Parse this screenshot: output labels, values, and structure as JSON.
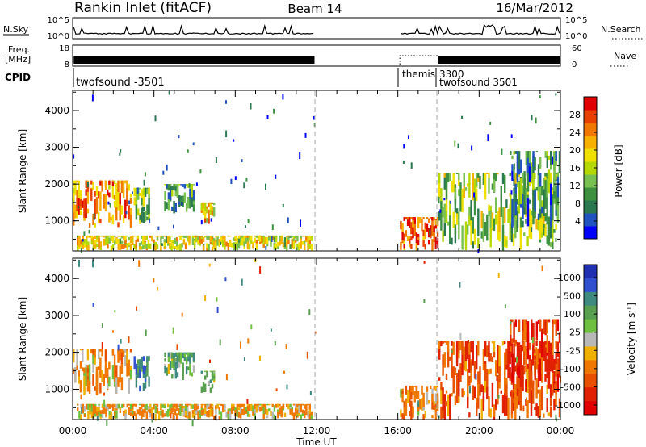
{
  "header": {
    "title": "Rankin Inlet (fitACF)",
    "beam": "Beam 14",
    "date": "16/Mar/2012"
  },
  "top_panels": {
    "nsky": {
      "left_label": "N.Sky",
      "right_label": "N.Search",
      "ticks_left": [
        "10^5",
        "10^0"
      ],
      "ticks_right": [
        "10^5",
        "10^0"
      ]
    },
    "freq": {
      "left_label_1": "Freq.",
      "left_label_2": "[MHz]",
      "right_label": "Nave",
      "ticks_left": [
        "18",
        "8"
      ],
      "ticks_right": [
        "60",
        "0"
      ]
    },
    "cpid": {
      "label": "CPID",
      "segments": [
        {
          "name": "twofsound -3501"
        },
        {
          "name": "themis"
        },
        {
          "name": "3300"
        },
        {
          "name": "twofsound 3501"
        }
      ]
    }
  },
  "chart_data": [
    {
      "type": "heatmap",
      "panel": "power",
      "ylabel": "Slant Range [km]",
      "xlabel": "",
      "xlim": [
        0,
        24
      ],
      "ylim": [
        180,
        4550
      ],
      "yticks": [
        "1000",
        "2000",
        "3000",
        "4000"
      ],
      "data_gap_ut": [
        11.9,
        16.1
      ],
      "colorbar": {
        "label": "Power [dB]",
        "range": [
          0,
          32
        ],
        "ticks": [
          "4",
          "8",
          "12",
          "16",
          "20",
          "24",
          "28"
        ],
        "colors": [
          "#0000ff",
          "#2052c0",
          "#2a7850",
          "#3c9040",
          "#78c050",
          "#b4d800",
          "#f0e000",
          "#f8b000",
          "#f07800",
          "#e84000",
          "#e00000"
        ]
      },
      "echo_regions": [
        {
          "t": [
            0.0,
            2.9
          ],
          "r": [
            800,
            2100
          ],
          "value": 24
        },
        {
          "t": [
            3.0,
            3.8
          ],
          "r": [
            900,
            1900
          ],
          "value": 14
        },
        {
          "t": [
            4.5,
            6.0
          ],
          "r": [
            1200,
            2000
          ],
          "value": 10
        },
        {
          "t": [
            6.3,
            7.0
          ],
          "r": [
            900,
            1500
          ],
          "value": 20
        },
        {
          "t": [
            0.2,
            11.8
          ],
          "r": [
            180,
            600
          ],
          "value": 18
        },
        {
          "t": [
            16.1,
            18.0
          ],
          "r": [
            180,
            1100
          ],
          "value": 27
        },
        {
          "t": [
            18.0,
            24.0
          ],
          "r": [
            180,
            2300
          ],
          "value": 14
        },
        {
          "t": [
            21.5,
            24.0
          ],
          "r": [
            800,
            2900
          ],
          "value": 9
        }
      ]
    },
    {
      "type": "heatmap",
      "panel": "velocity",
      "ylabel": "Slant Range [km]",
      "xlabel": "Time UT",
      "xlim": [
        0,
        24
      ],
      "ylim": [
        180,
        4550
      ],
      "xticks": [
        "00:00",
        "04:00",
        "08:00",
        "12:00",
        "16:00",
        "20:00",
        "00:00"
      ],
      "yticks": [
        "1000",
        "2000",
        "3000",
        "4000"
      ],
      "data_gap_ut": [
        11.9,
        16.1
      ],
      "colorbar": {
        "label": "Velocity [m s^-1]",
        "ticks": [
          "1000",
          "500",
          "100",
          "25",
          "-25",
          "-100",
          "-500",
          "-1000"
        ],
        "colors": [
          "#2030b0",
          "#3050d0",
          "#3e8a80",
          "#58a050",
          "#70c040",
          "#b8b8b8",
          "#f0b000",
          "#f07800",
          "#e85000",
          "#e02000",
          "#e00000"
        ]
      },
      "echo_regions": [
        {
          "t": [
            0.0,
            2.9
          ],
          "r": [
            800,
            2100
          ],
          "value": -150
        },
        {
          "t": [
            3.0,
            3.8
          ],
          "r": [
            900,
            1900
          ],
          "value": 400
        },
        {
          "t": [
            4.5,
            6.0
          ],
          "r": [
            1200,
            2000
          ],
          "value": 200
        },
        {
          "t": [
            6.3,
            7.0
          ],
          "r": [
            900,
            1500
          ],
          "value": 150
        },
        {
          "t": [
            0.2,
            11.8
          ],
          "r": [
            180,
            600
          ],
          "value": -100
        },
        {
          "t": [
            16.1,
            18.0
          ],
          "r": [
            180,
            1100
          ],
          "value": -200
        },
        {
          "t": [
            18.0,
            24.0
          ],
          "r": [
            180,
            2300
          ],
          "value": -400
        },
        {
          "t": [
            21.5,
            24.0
          ],
          "r": [
            800,
            2900
          ],
          "value": -600
        }
      ]
    }
  ]
}
